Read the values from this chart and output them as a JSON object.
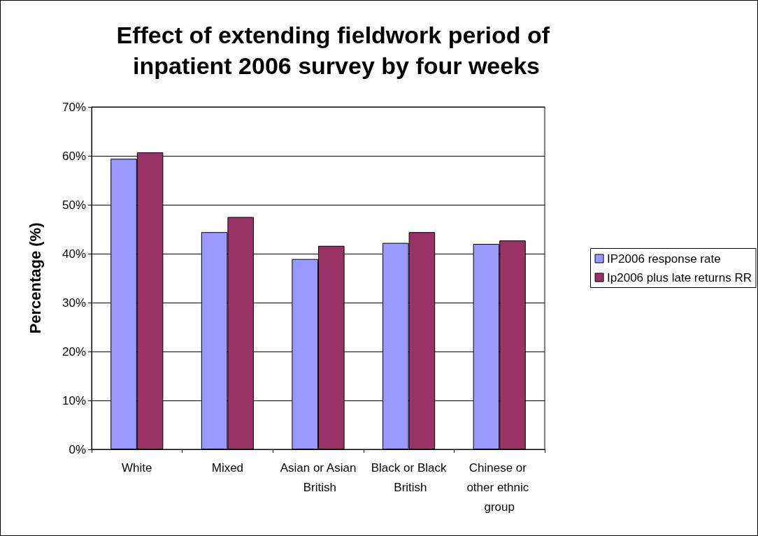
{
  "chart_data": {
    "type": "bar",
    "title": "Effect of extending fieldwork period of inpatient 2006 survey by four weeks",
    "ylabel": "Percentage (%)",
    "categories": [
      "White",
      "Mixed",
      "Asian or Asian British",
      "Black or Black British",
      "Chinese or other ethnic group"
    ],
    "series": [
      {
        "name": "IP2006 response rate",
        "color": "#9999ff",
        "values": [
          59.4,
          44.4,
          38.9,
          42.2,
          42.0
        ]
      },
      {
        "name": "Ip2006 plus late returns RR",
        "color": "#993366",
        "values": [
          60.7,
          47.5,
          41.6,
          44.4,
          42.7
        ]
      }
    ],
    "ylim": [
      0,
      70
    ],
    "yticks": [
      {
        "value": 0,
        "label": "0%"
      },
      {
        "value": 10,
        "label": "10%"
      },
      {
        "value": 20,
        "label": "20%"
      },
      {
        "value": 30,
        "label": "30%"
      },
      {
        "value": 40,
        "label": "40%"
      },
      {
        "value": 50,
        "label": "50%"
      },
      {
        "value": 60,
        "label": "60%"
      },
      {
        "value": 70,
        "label": "70%"
      }
    ],
    "grid": "y",
    "legend": "right"
  }
}
